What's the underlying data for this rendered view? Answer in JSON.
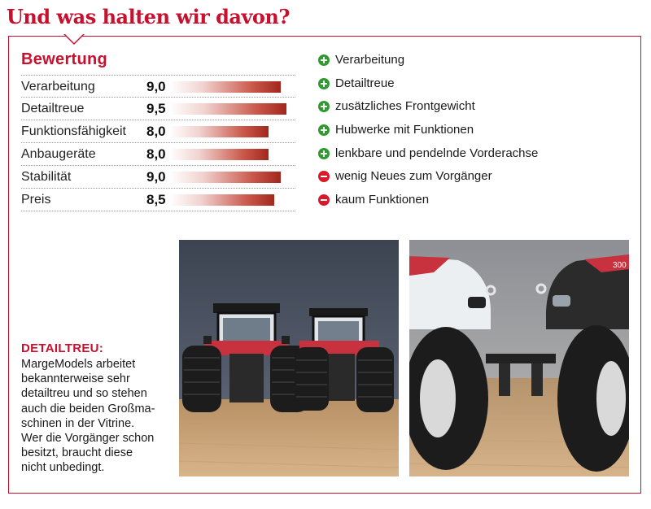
{
  "headline": "Und was halten wir davon?",
  "rating": {
    "title": "Bewertung",
    "max": 10,
    "items": [
      {
        "label": "Verarbeitung",
        "score": "9,0",
        "value": 9.0
      },
      {
        "label": "Detailtreue",
        "score": "9,5",
        "value": 9.5
      },
      {
        "label": "Funktionsfähigkeit",
        "score": "8,0",
        "value": 8.0
      },
      {
        "label": "Anbaugeräte",
        "score": "8,0",
        "value": 8.0
      },
      {
        "label": "Stabilität",
        "score": "9,0",
        "value": 9.0
      },
      {
        "label": "Preis",
        "score": "8,5",
        "value": 8.5
      }
    ]
  },
  "pros": [
    "Verarbeitung",
    "Detailtreue",
    "zusätzliches Frontgewicht",
    "Hubwerke mit Funktionen",
    "lenkbare und pendelnde Vorderachse"
  ],
  "cons": [
    "wenig Neues zum Vorgänger",
    "kaum Funktionen"
  ],
  "caption": {
    "heading": "DETAILTREU:",
    "lines": [
      "MargeModels arbeitet",
      "bekannterweise sehr",
      "detailtreu und so stehen",
      "auch die beiden Großma-",
      "schinen in der Vitrine.",
      "Wer die Vorgänger schon",
      "besitzt, braucht diese",
      "nicht unbedingt."
    ]
  },
  "photos": {
    "right_badge": "300"
  },
  "colors": {
    "accent": "#c8102e",
    "plus": "#2e9b2e",
    "minus": "#d7192b"
  }
}
